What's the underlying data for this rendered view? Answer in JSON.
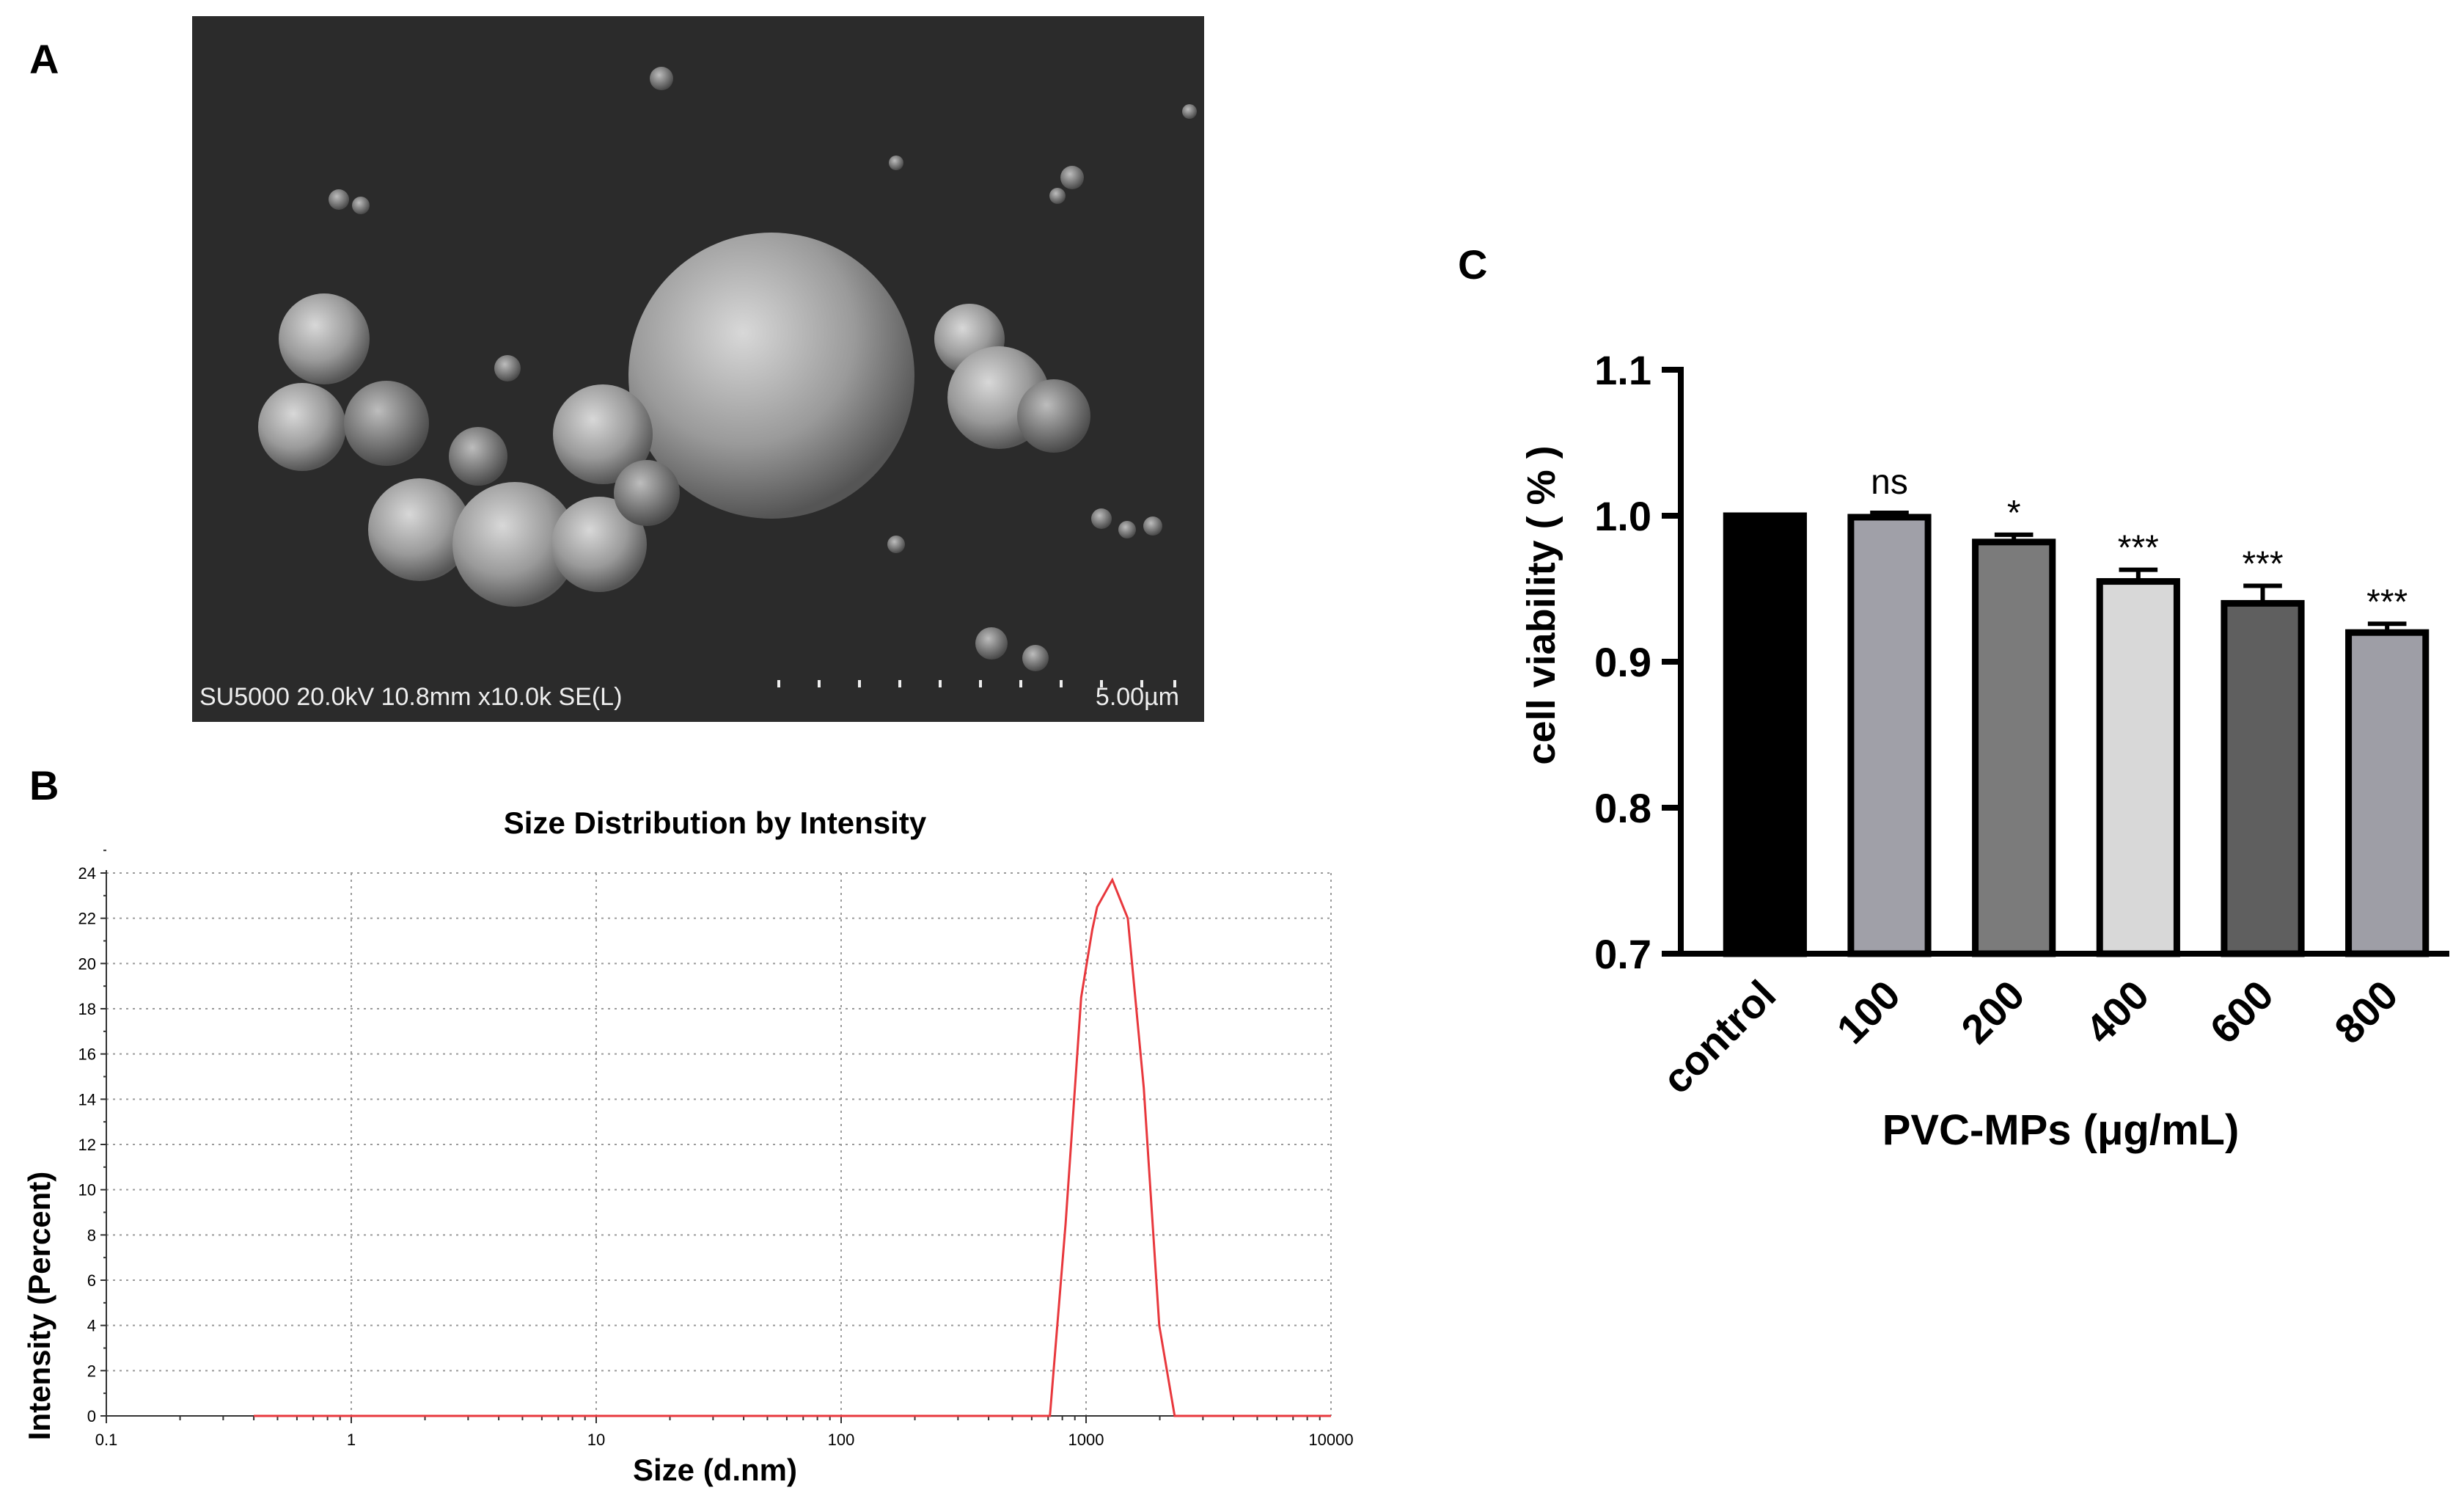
{
  "panels": {
    "a_label": "A",
    "b_label": "B",
    "c_label": "C"
  },
  "sem": {
    "info": "SU5000 20.0kV 10.8mm x10.0k SE(L)",
    "scale_label": "5.00µm"
  },
  "chart_data": [
    {
      "type": "line",
      "title": "Size Distribution  by Intensity",
      "xlabel": "Size (d.nm)",
      "ylabel": "Intensity (Percent)",
      "x_scale": "log",
      "xlim": [
        0.1,
        10000
      ],
      "ylim": [
        0,
        24
      ],
      "grid": true,
      "x_ticks": [
        0.1,
        1,
        10,
        100,
        1000,
        10000
      ],
      "x_tick_labels": [
        "0.1",
        "1",
        "10",
        "100",
        "1000",
        "10000"
      ],
      "y_ticks": [
        0,
        2,
        4,
        6,
        8,
        10,
        12,
        14,
        16,
        18,
        20,
        22,
        24
      ],
      "y_tick_labels": [
        "0",
        "2",
        "4",
        "6",
        "8",
        "10",
        "12",
        "14",
        "16",
        "18",
        "20",
        "22",
        "24"
      ],
      "series": [
        {
          "name": "Intensity",
          "color": "#e8383d",
          "x": [
            0.4,
            712,
            825,
            955,
            1060,
            1110,
            1280,
            1480,
            1720,
            1990,
            2300,
            10000
          ],
          "y": [
            0,
            0,
            8.5,
            18.5,
            21.5,
            22.5,
            23.7,
            22.0,
            14.5,
            4.0,
            0,
            0
          ]
        }
      ]
    },
    {
      "type": "bar",
      "xlabel": "PVC-MPs (μg/mL)",
      "ylabel": "cell viability ( % )",
      "ylim": [
        0.7,
        1.1
      ],
      "y_ticks": [
        0.7,
        0.8,
        0.9,
        1.0,
        1.1
      ],
      "y_tick_labels": [
        "0.7",
        "0.8",
        "0.9",
        "1.0",
        "1.1"
      ],
      "categories": [
        "control",
        "100",
        "200",
        "400",
        "600",
        "800"
      ],
      "values": [
        1.0,
        0.999,
        0.982,
        0.955,
        0.94,
        0.92
      ],
      "errors": [
        0,
        0.003,
        0.005,
        0.008,
        0.012,
        0.006
      ],
      "significance": [
        "",
        "ns",
        "*",
        "***",
        "***",
        "***"
      ],
      "bar_colors": [
        "#000000",
        "#a0a0a8",
        "#7b7b7b",
        "#d8d8d8",
        "#5f5f5f",
        "#9e9ea6"
      ]
    }
  ]
}
